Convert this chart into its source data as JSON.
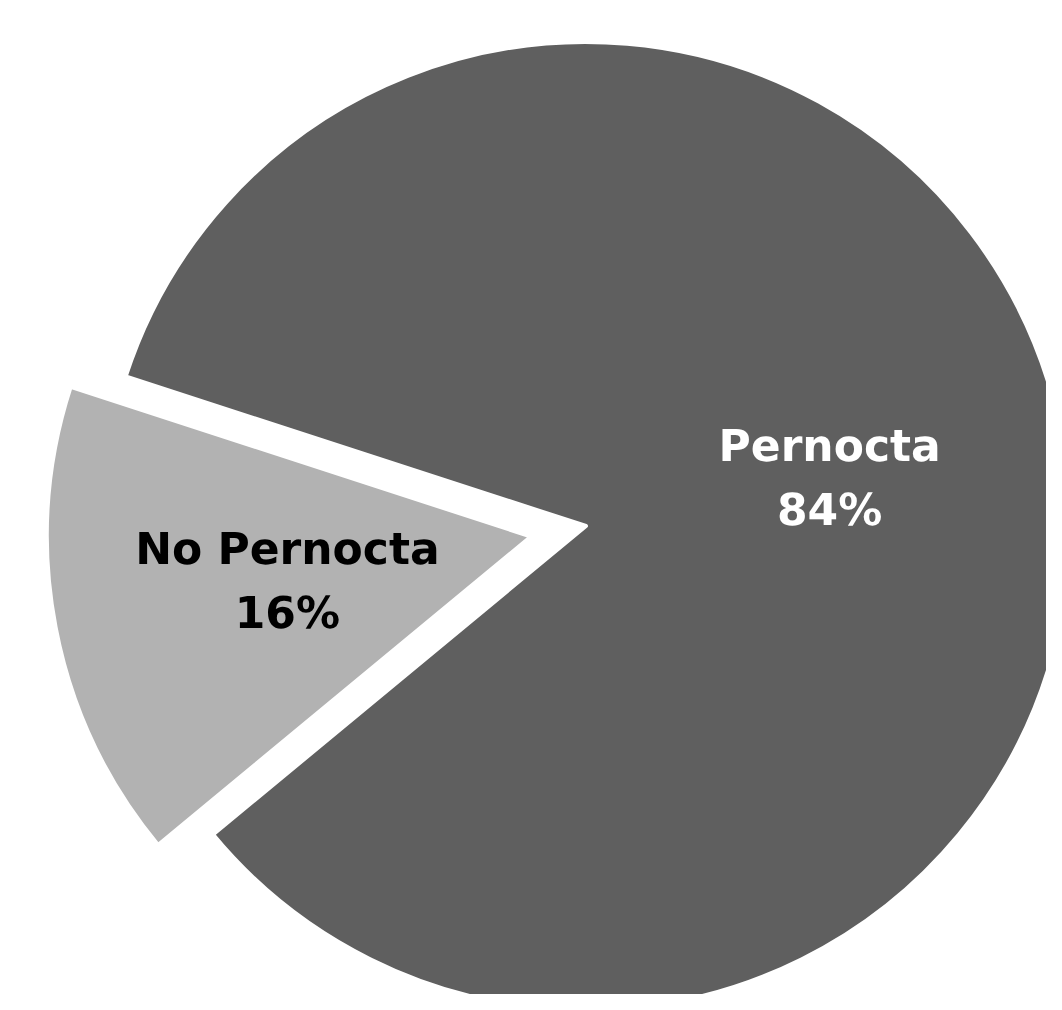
{
  "chart_data": {
    "type": "pie",
    "categories": [
      "Pernocta",
      "No Pernocta"
    ],
    "values": [
      84,
      16
    ],
    "colors": [
      "#5f5f5f",
      "#b2b2b2"
    ],
    "value_labels": [
      "84%",
      "16%"
    ]
  }
}
